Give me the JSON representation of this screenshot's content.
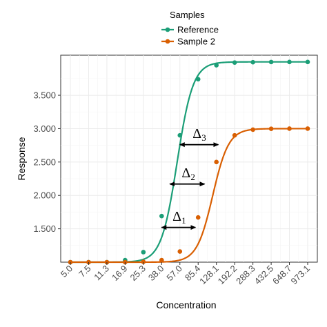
{
  "chart_data": {
    "type": "line",
    "xlabel": "Concentration",
    "ylabel": "Response",
    "categories": [
      "5.0",
      "7.5",
      "11.3",
      "16.9",
      "25.3",
      "38.0",
      "57.0",
      "85.4",
      "128.1",
      "192.2",
      "288.3",
      "432.5",
      "648.7",
      "973.1"
    ],
    "yticks": [
      1500,
      2000,
      2500,
      3000,
      3500
    ],
    "ytick_labels": [
      "1.500",
      "2.000",
      "2.500",
      "3.000",
      "3.500"
    ],
    "ylim": [
      1000,
      4100
    ],
    "grid": true,
    "legend": {
      "title": "Samples",
      "placement": "top-center"
    },
    "series": [
      {
        "name": "Reference",
        "color": "#1b9e77",
        "values": [
          1000,
          1000,
          1000,
          1030,
          1150,
          1690,
          2900,
          3740,
          3950,
          3990,
          3995,
          3998,
          3999,
          3999
        ],
        "bottom": 1000,
        "top": 4000,
        "ec50_index": 5.85,
        "hill": 2.3
      },
      {
        "name": "Sample 2",
        "color": "#d95f02",
        "values": [
          1000,
          1000,
          1000,
          1000,
          1005,
          1030,
          1160,
          1670,
          2500,
          2900,
          2985,
          2998,
          3000,
          3000
        ],
        "bottom": 1000,
        "top": 3000,
        "ec50_index": 7.8,
        "hill": 2.3
      }
    ],
    "annotations": [
      {
        "symbol": "Δ",
        "subscript": "1",
        "y": 1520,
        "x_from_index": 5.0,
        "x_to_index": 6.85,
        "label_index": 5.9,
        "label_y": 1620
      },
      {
        "symbol": "Δ",
        "subscript": "2",
        "y": 2170,
        "x_from_index": 5.45,
        "x_to_index": 7.35,
        "label_index": 6.4,
        "label_y": 2270
      },
      {
        "symbol": "Δ",
        "subscript": "3",
        "y": 2760,
        "x_from_index": 6.0,
        "x_to_index": 8.1,
        "label_index": 7.0,
        "label_y": 2860
      }
    ]
  }
}
